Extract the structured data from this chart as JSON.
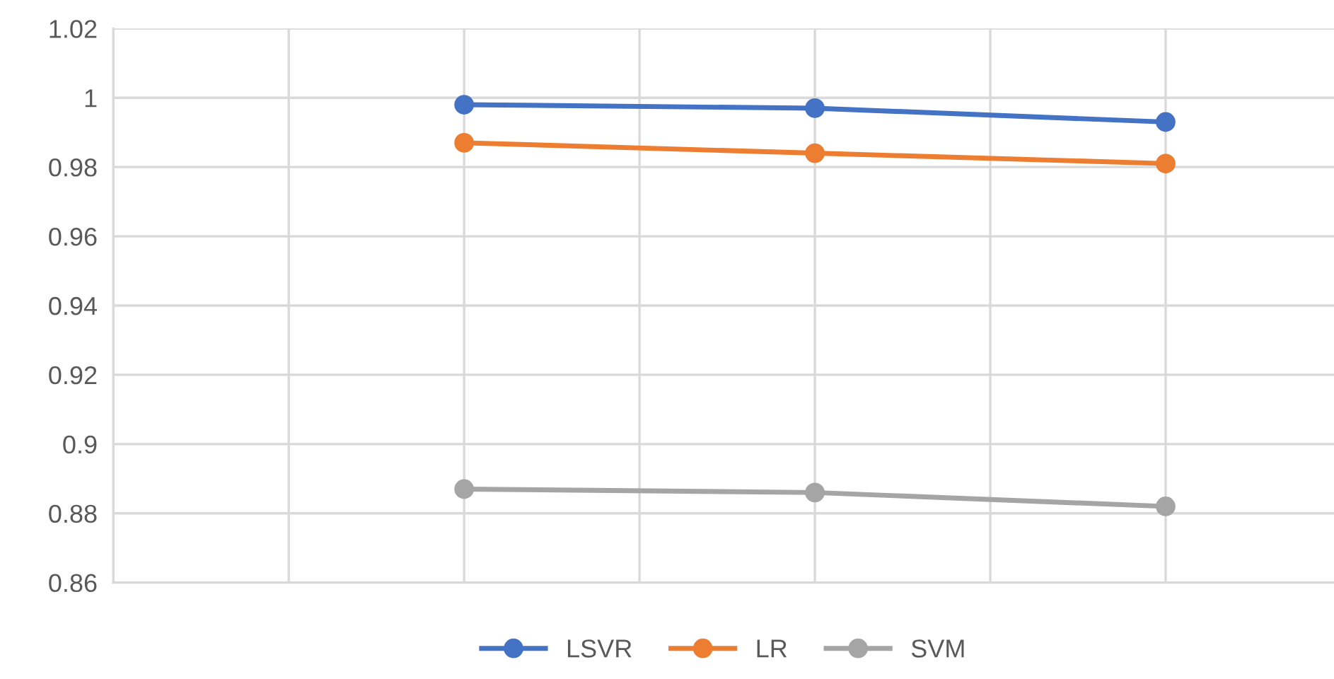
{
  "chart_data": {
    "type": "line",
    "categories": [
      null,
      null,
      null
    ],
    "series": [
      {
        "name": "LSVR",
        "color": "#4472c4",
        "values": [
          0.998,
          0.997,
          0.993
        ]
      },
      {
        "name": "LR",
        "color": "#ed7d31",
        "values": [
          0.987,
          0.984,
          0.981
        ]
      },
      {
        "name": "SVM",
        "color": "#a5a5a5",
        "values": [
          0.887,
          0.886,
          0.882
        ]
      }
    ],
    "ylim": [
      0.86,
      1.02
    ],
    "yticks": [
      0.86,
      0.88,
      0.9,
      0.92,
      0.94,
      0.96,
      0.98,
      1,
      1.02
    ],
    "grid": true,
    "legend": "bottom",
    "marker": "circle",
    "line_style": "solid",
    "tick_labels": "y"
  }
}
